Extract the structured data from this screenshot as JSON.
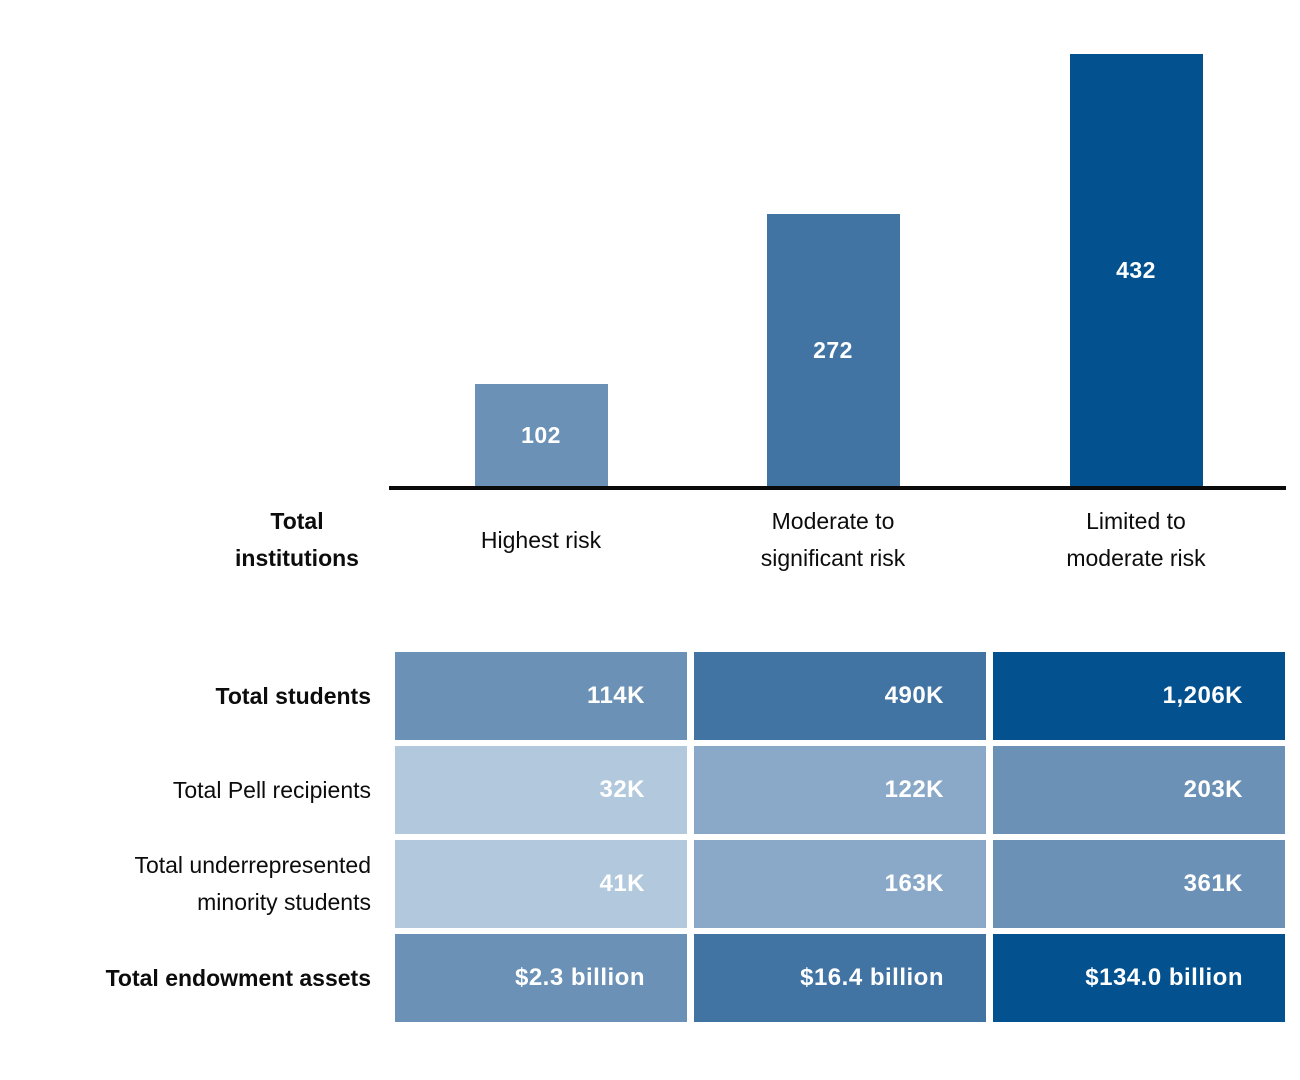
{
  "chart_data": {
    "type": "bar",
    "title": "",
    "row_header": "Total institutions",
    "row_header_display": "Total\ninstitutions",
    "categories": [
      "Highest risk",
      "Moderate to significant risk",
      "Limited to moderate risk"
    ],
    "category_display": [
      "Highest risk",
      "Moderate to\nsignificant risk",
      "Limited to\nmoderate risk"
    ],
    "values": [
      102,
      272,
      432
    ],
    "value_labels": [
      "102",
      "272",
      "432"
    ],
    "bar_colors": [
      "#6b92b6",
      "#4173a3",
      "#03518f"
    ],
    "value_label_color": "#ffffff",
    "axis_color": "#0a0a0a",
    "ylim": [
      0,
      440
    ],
    "grid": false,
    "legend": false,
    "table": {
      "columns": [
        "Highest risk",
        "Moderate to significant risk",
        "Limited to moderate risk"
      ],
      "rows": [
        {
          "label": "Total students",
          "label_display": "Total students",
          "bold": true,
          "values": [
            "114K",
            "490K",
            "1,206K"
          ],
          "colors": [
            "#6b92b6",
            "#4173a3",
            "#03518f"
          ]
        },
        {
          "label": "Total Pell recipients",
          "label_display": "Total Pell recipients",
          "bold": false,
          "values": [
            "32K",
            "122K",
            "203K"
          ],
          "colors": [
            "#b2c8dd",
            "#8aa9c8",
            "#6b92b6"
          ]
        },
        {
          "label": "Total underrepresented minority students",
          "label_display": "Total underrepresented\nminority students",
          "bold": false,
          "values": [
            "41K",
            "163K",
            "361K"
          ],
          "colors": [
            "#b2c8dd",
            "#8aa9c8",
            "#6b92b6"
          ]
        },
        {
          "label": "Total endowment assets",
          "label_display": "Total endowment assets",
          "bold": true,
          "values": [
            "$2.3 billion",
            "$16.4 billion",
            "$134.0 billion"
          ],
          "colors": [
            "#6b92b6",
            "#4173a3",
            "#03518f"
          ]
        }
      ]
    }
  }
}
